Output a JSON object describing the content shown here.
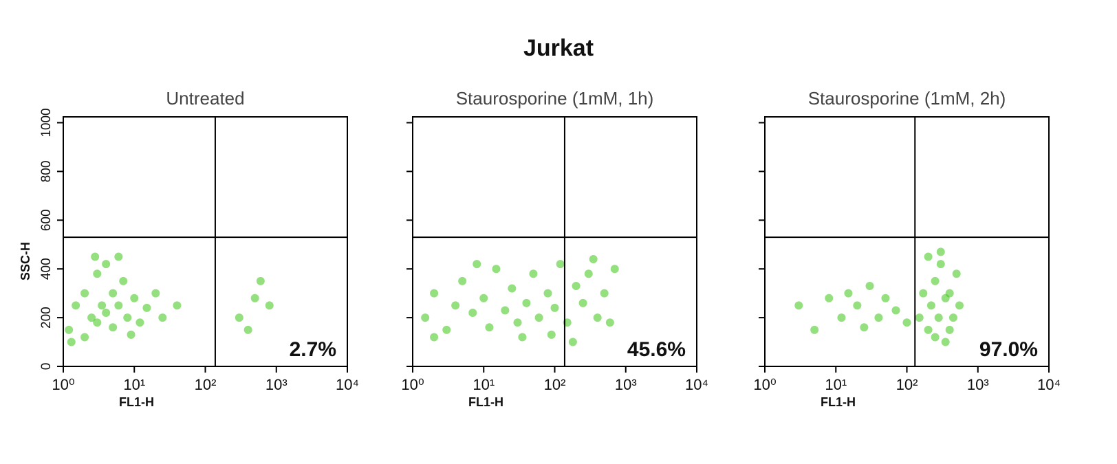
{
  "title": "Jurkat",
  "chart_data": [
    {
      "type": "scatter",
      "title": "Untreated",
      "x_label": "FL1-H",
      "y_label": "SSC-H",
      "xscale": "log",
      "xlim": [
        1,
        10000
      ],
      "xticks": [
        {
          "value": 1,
          "label": "10⁰"
        },
        {
          "value": 10,
          "label": "10¹"
        },
        {
          "value": 100,
          "label": "10²"
        },
        {
          "value": 1000,
          "label": "10³"
        },
        {
          "value": 10000,
          "label": "10⁴"
        }
      ],
      "ylim": [
        0,
        1024
      ],
      "yticks": [
        0,
        200,
        400,
        600,
        800,
        1000
      ],
      "show_ytick_labels": true,
      "gate_x": 138,
      "gate_y": 530,
      "quadrant_percent": 2.7,
      "quadrant_percent_label": "2.7%",
      "color": "#3cc414",
      "x": [
        1.2,
        1.5,
        2,
        2,
        2.5,
        3,
        3,
        3.5,
        4,
        4,
        5,
        5,
        6,
        7,
        8,
        10,
        12,
        15,
        20,
        25,
        1.3,
        2.8,
        6,
        9,
        40,
        300,
        400,
        500,
        600,
        800
      ],
      "y": [
        150,
        250,
        120,
        300,
        200,
        180,
        380,
        250,
        220,
        420,
        160,
        300,
        250,
        350,
        200,
        280,
        180,
        240,
        300,
        200,
        100,
        450,
        450,
        130,
        250,
        200,
        150,
        280,
        350,
        250
      ]
    },
    {
      "type": "scatter",
      "title": "Staurosporine (1mM, 1h)",
      "x_label": "FL1-H",
      "xscale": "log",
      "xlim": [
        1,
        10000
      ],
      "xticks": [
        {
          "value": 1,
          "label": "10⁰"
        },
        {
          "value": 10,
          "label": "10¹"
        },
        {
          "value": 100,
          "label": "10²"
        },
        {
          "value": 1000,
          "label": "10³"
        },
        {
          "value": 10000,
          "label": "10⁴"
        }
      ],
      "ylim": [
        0,
        1024
      ],
      "yticks": [
        0,
        200,
        400,
        600,
        800,
        1000
      ],
      "show_ytick_labels": false,
      "gate_x": 138,
      "gate_y": 530,
      "quadrant_percent": 45.6,
      "quadrant_percent_label": "45.6%",
      "color": "#3cc414",
      "x": [
        1.5,
        2,
        3,
        4,
        5,
        7,
        10,
        12,
        15,
        20,
        25,
        30,
        40,
        50,
        60,
        80,
        100,
        120,
        150,
        200,
        250,
        300,
        400,
        500,
        600,
        700,
        2,
        8,
        35,
        90,
        180,
        350
      ],
      "y": [
        200,
        300,
        150,
        250,
        350,
        220,
        280,
        160,
        400,
        230,
        320,
        180,
        260,
        380,
        200,
        300,
        240,
        420,
        180,
        330,
        260,
        380,
        200,
        300,
        180,
        400,
        120,
        420,
        120,
        130,
        100,
        440
      ]
    },
    {
      "type": "scatter",
      "title": "Staurosporine (1mM, 2h)",
      "x_label": "FL1-H",
      "xscale": "log",
      "xlim": [
        1,
        10000
      ],
      "xticks": [
        {
          "value": 1,
          "label": "10⁰"
        },
        {
          "value": 10,
          "label": "10¹"
        },
        {
          "value": 100,
          "label": "10²"
        },
        {
          "value": 1000,
          "label": "10³"
        },
        {
          "value": 10000,
          "label": "10⁴"
        }
      ],
      "ylim": [
        0,
        1024
      ],
      "yticks": [
        0,
        200,
        400,
        600,
        800,
        1000
      ],
      "show_ytick_labels": false,
      "gate_x": 130,
      "gate_y": 530,
      "quadrant_percent": 97.0,
      "quadrant_percent_label": "97.0%",
      "color": "#3cc414",
      "x": [
        3,
        5,
        8,
        12,
        15,
        20,
        25,
        30,
        40,
        50,
        70,
        100,
        150,
        170,
        200,
        220,
        250,
        280,
        300,
        350,
        400,
        450,
        500,
        550,
        200,
        300,
        400,
        250,
        350
      ],
      "y": [
        250,
        150,
        280,
        200,
        300,
        250,
        160,
        330,
        200,
        280,
        230,
        180,
        200,
        300,
        150,
        250,
        350,
        200,
        420,
        280,
        300,
        200,
        380,
        250,
        450,
        470,
        150,
        120,
        100
      ]
    }
  ]
}
